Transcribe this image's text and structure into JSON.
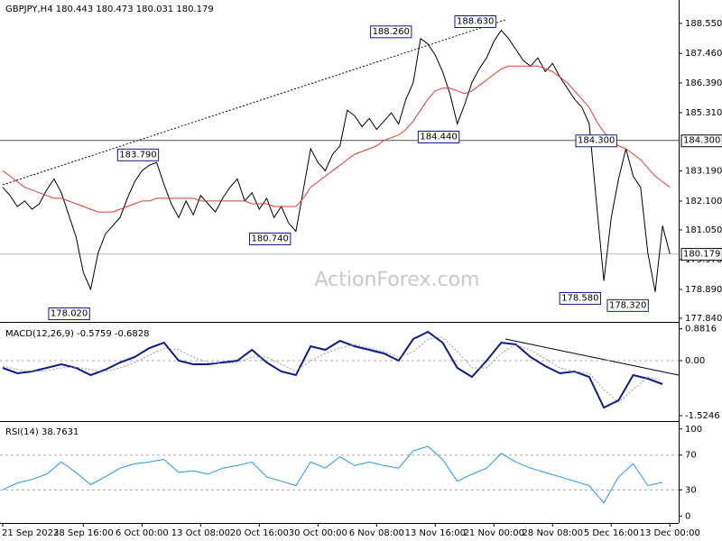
{
  "chart_data": [
    {
      "type": "line",
      "title": "GBPJPY,H4  180.443 180.473 180.031 180.179",
      "watermark": "ActionForex.com",
      "x": [
        0,
        1,
        2,
        3,
        4,
        5,
        6,
        7,
        8,
        9,
        10,
        11,
        12,
        13,
        14,
        15,
        16,
        17,
        18,
        19,
        20,
        21,
        22,
        23,
        24,
        25,
        26,
        27,
        28,
        29,
        30,
        31,
        32,
        33,
        34,
        35,
        36,
        37,
        38,
        39,
        40,
        41,
        42,
        43,
        44,
        45,
        46,
        47,
        48,
        49,
        50,
        51,
        52,
        53,
        54,
        55,
        56,
        57,
        58,
        59,
        60,
        61,
        62,
        63,
        64,
        65,
        66,
        67,
        68,
        69,
        70,
        71,
        72,
        73,
        74,
        75,
        76,
        77,
        78,
        79,
        80,
        81,
        82,
        83,
        84,
        85,
        86,
        87,
        88,
        89,
        90,
        91
      ],
      "series": [
        {
          "color": "#000000",
          "values": [
            182.6,
            182.3,
            181.9,
            182.1,
            181.8,
            182.0,
            182.5,
            182.9,
            182.4,
            181.6,
            180.8,
            179.5,
            178.9,
            180.2,
            180.9,
            181.2,
            181.5,
            182.2,
            182.8,
            183.2,
            183.4,
            183.5,
            182.7,
            182.0,
            181.5,
            182.1,
            181.6,
            182.3,
            182.0,
            181.7,
            182.2,
            182.6,
            182.9,
            182.1,
            182.4,
            181.8,
            182.2,
            181.5,
            181.9,
            181.3,
            181.0,
            182.5,
            184.0,
            183.5,
            183.2,
            183.8,
            184.1,
            185.4,
            185.2,
            184.8,
            185.1,
            184.7,
            185.0,
            185.3,
            184.9,
            185.8,
            186.4,
            188.0,
            187.8,
            187.4,
            186.8,
            186.0,
            184.9,
            185.6,
            186.4,
            186.9,
            187.3,
            187.9,
            188.3,
            188.0,
            187.6,
            187.2,
            187.0,
            187.3,
            186.8,
            187.1,
            186.6,
            186.2,
            185.8,
            185.5,
            184.9,
            182.0,
            179.2,
            181.5,
            182.9,
            184.0,
            183.0,
            182.6,
            180.2,
            178.8,
            181.2,
            180.179
          ]
        },
        {
          "color": "#e53935",
          "values": [
            183.2,
            183.0,
            182.8,
            182.6,
            182.5,
            182.4,
            182.3,
            182.2,
            182.2,
            182.1,
            182.0,
            181.9,
            181.8,
            181.7,
            181.7,
            181.7,
            181.8,
            181.9,
            182.0,
            182.1,
            182.1,
            182.2,
            182.2,
            182.2,
            182.2,
            182.2,
            182.2,
            182.1,
            182.1,
            182.1,
            182.1,
            182.1,
            182.1,
            182.1,
            182.0,
            182.0,
            182.0,
            181.9,
            181.9,
            181.9,
            181.9,
            182.2,
            182.6,
            182.8,
            183.0,
            183.2,
            183.4,
            183.6,
            183.8,
            183.9,
            184.0,
            184.1,
            184.3,
            184.4,
            184.5,
            184.7,
            185.0,
            185.4,
            185.8,
            186.1,
            186.2,
            186.2,
            186.1,
            186.0,
            186.1,
            186.3,
            186.5,
            186.7,
            186.9,
            187.0,
            187.0,
            187.0,
            187.0,
            187.0,
            186.9,
            186.8,
            186.6,
            186.4,
            186.1,
            185.8,
            185.5,
            185.0,
            184.6,
            184.3,
            184.1,
            184.0,
            183.8,
            183.6,
            183.3,
            183.0,
            182.8,
            182.6
          ]
        }
      ],
      "annotations": [
        {
          "x": 12.1,
          "y": 178.02,
          "label": "178.020"
        },
        {
          "x": 21.5,
          "y": 183.79,
          "label": "183.790"
        },
        {
          "x": 39.5,
          "y": 180.74,
          "label": "180.740"
        },
        {
          "x": 56.0,
          "y": 188.26,
          "label": "188.260"
        },
        {
          "x": 62.5,
          "y": 184.44,
          "label": "184.440"
        },
        {
          "x": 67.5,
          "y": 188.63,
          "label": "188.630"
        },
        {
          "x": 84,
          "y": 184.3,
          "label": "184.300"
        },
        {
          "x": 81.8,
          "y": 178.58,
          "label": "178.580"
        },
        {
          "x": 88.3,
          "y": 178.32,
          "label": "178.320"
        }
      ],
      "hlines": [
        {
          "value": 184.3,
          "label": "184.300",
          "color": "#555555"
        },
        {
          "value": 180.179,
          "label": "180.179",
          "color": "#bbbbbb"
        }
      ],
      "xlim": [
        0,
        92.2
      ],
      "ylim": [
        177.71,
        189.4
      ],
      "yticks": [
        {
          "value": 188.55,
          "label": "188.550"
        },
        {
          "value": 187.46,
          "label": "187.460"
        },
        {
          "value": 186.39,
          "label": "186.390"
        },
        {
          "value": 185.31,
          "label": "185.310"
        },
        {
          "value": 183.19,
          "label": "183.190"
        },
        {
          "value": 182.1,
          "label": "182.100"
        },
        {
          "value": 181.05,
          "label": "181.050"
        },
        {
          "value": 179.97,
          "label": "179.970"
        },
        {
          "value": 178.89,
          "label": "178.890"
        },
        {
          "value": 177.84,
          "label": "177.840"
        }
      ]
    },
    {
      "type": "line",
      "title": "MACD(12,26,9) -0.5759 -0.6828",
      "x": [
        0,
        2,
        4,
        6,
        8,
        10,
        12,
        14,
        16,
        18,
        20,
        22,
        24,
        26,
        28,
        30,
        32,
        34,
        36,
        38,
        40,
        42,
        44,
        46,
        48,
        50,
        52,
        54,
        56,
        58,
        60,
        62,
        64,
        66,
        68,
        70,
        72,
        74,
        76,
        78,
        80,
        82,
        84,
        86,
        88,
        90
      ],
      "series": [
        {
          "color": "#0d1b8c",
          "values": [
            -0.2,
            -0.35,
            -0.3,
            -0.2,
            -0.1,
            -0.2,
            -0.4,
            -0.25,
            -0.05,
            0.1,
            0.35,
            0.5,
            0.0,
            -0.1,
            -0.1,
            -0.05,
            0.0,
            0.3,
            -0.05,
            -0.3,
            -0.4,
            0.4,
            0.3,
            0.55,
            0.4,
            0.3,
            0.2,
            0.0,
            0.6,
            0.8,
            0.5,
            -0.2,
            -0.45,
            0.0,
            0.5,
            0.45,
            0.1,
            -0.15,
            -0.35,
            -0.3,
            -0.45,
            -1.3,
            -1.1,
            -0.4,
            -0.5,
            -0.65
          ]
        },
        {
          "color": "#999999",
          "dash": true,
          "values": [
            -0.15,
            -0.25,
            -0.3,
            -0.28,
            -0.2,
            -0.18,
            -0.25,
            -0.3,
            -0.2,
            -0.05,
            0.15,
            0.35,
            0.3,
            0.1,
            -0.05,
            -0.08,
            -0.05,
            0.1,
            0.1,
            -0.1,
            -0.3,
            0.0,
            0.2,
            0.35,
            0.45,
            0.35,
            0.25,
            0.1,
            0.25,
            0.6,
            0.65,
            0.25,
            -0.2,
            -0.2,
            0.2,
            0.45,
            0.3,
            0.05,
            -0.2,
            -0.3,
            -0.35,
            -0.8,
            -1.15,
            -0.8,
            -0.45,
            -0.55
          ]
        }
      ],
      "levels": [
        0
      ],
      "xlim": [
        0,
        92.2
      ],
      "ylim": [
        -1.65,
        1.0
      ],
      "yticks": [
        0.8816,
        {
          "value": 0,
          "label": "0.00"
        },
        -1.5246
      ]
    },
    {
      "type": "line",
      "title": "RSI(14) 38.7631",
      "x": [
        0,
        2,
        4,
        6,
        8,
        10,
        12,
        14,
        16,
        18,
        20,
        22,
        24,
        26,
        28,
        30,
        32,
        34,
        36,
        38,
        40,
        42,
        44,
        46,
        48,
        50,
        52,
        54,
        56,
        58,
        60,
        62,
        64,
        66,
        68,
        70,
        72,
        74,
        76,
        78,
        80,
        82,
        84,
        86,
        88,
        90
      ],
      "series": [
        {
          "color": "#2196f3",
          "values": [
            30,
            38,
            42,
            48,
            62,
            50,
            36,
            45,
            55,
            60,
            62,
            65,
            50,
            52,
            48,
            55,
            58,
            62,
            45,
            40,
            35,
            62,
            55,
            68,
            58,
            62,
            58,
            55,
            75,
            80,
            65,
            40,
            48,
            55,
            72,
            62,
            55,
            50,
            45,
            40,
            35,
            15,
            45,
            60,
            35,
            38.7631
          ]
        }
      ],
      "levels": [
        70,
        30
      ],
      "xlim": [
        0,
        92.2
      ],
      "ylim": [
        -8,
        107
      ],
      "yticks": [
        100,
        70,
        30,
        0
      ],
      "xticks": [
        {
          "value": 0,
          "label": "21 Sep 2023"
        },
        {
          "value": 11,
          "label": "28 Sep 16:00"
        },
        {
          "value": 19,
          "label": "6 Oct 00:00"
        },
        {
          "value": 27,
          "label": "13 Oct 08:00"
        },
        {
          "value": 35,
          "label": "20 Oct 16:00"
        },
        {
          "value": 43,
          "label": "30 Oct 00:00"
        },
        {
          "value": 51,
          "label": "6 Nov 08:00"
        },
        {
          "value": 59,
          "label": "13 Nov 16:00"
        },
        {
          "value": 67,
          "label": "21 Nov 00:00"
        },
        {
          "value": 75,
          "label": "28 Nov 08:00"
        },
        {
          "value": 83,
          "label": "5 Dec 16:00"
        },
        {
          "value": 91,
          "label": "13 Dec 00:00"
        }
      ]
    }
  ]
}
